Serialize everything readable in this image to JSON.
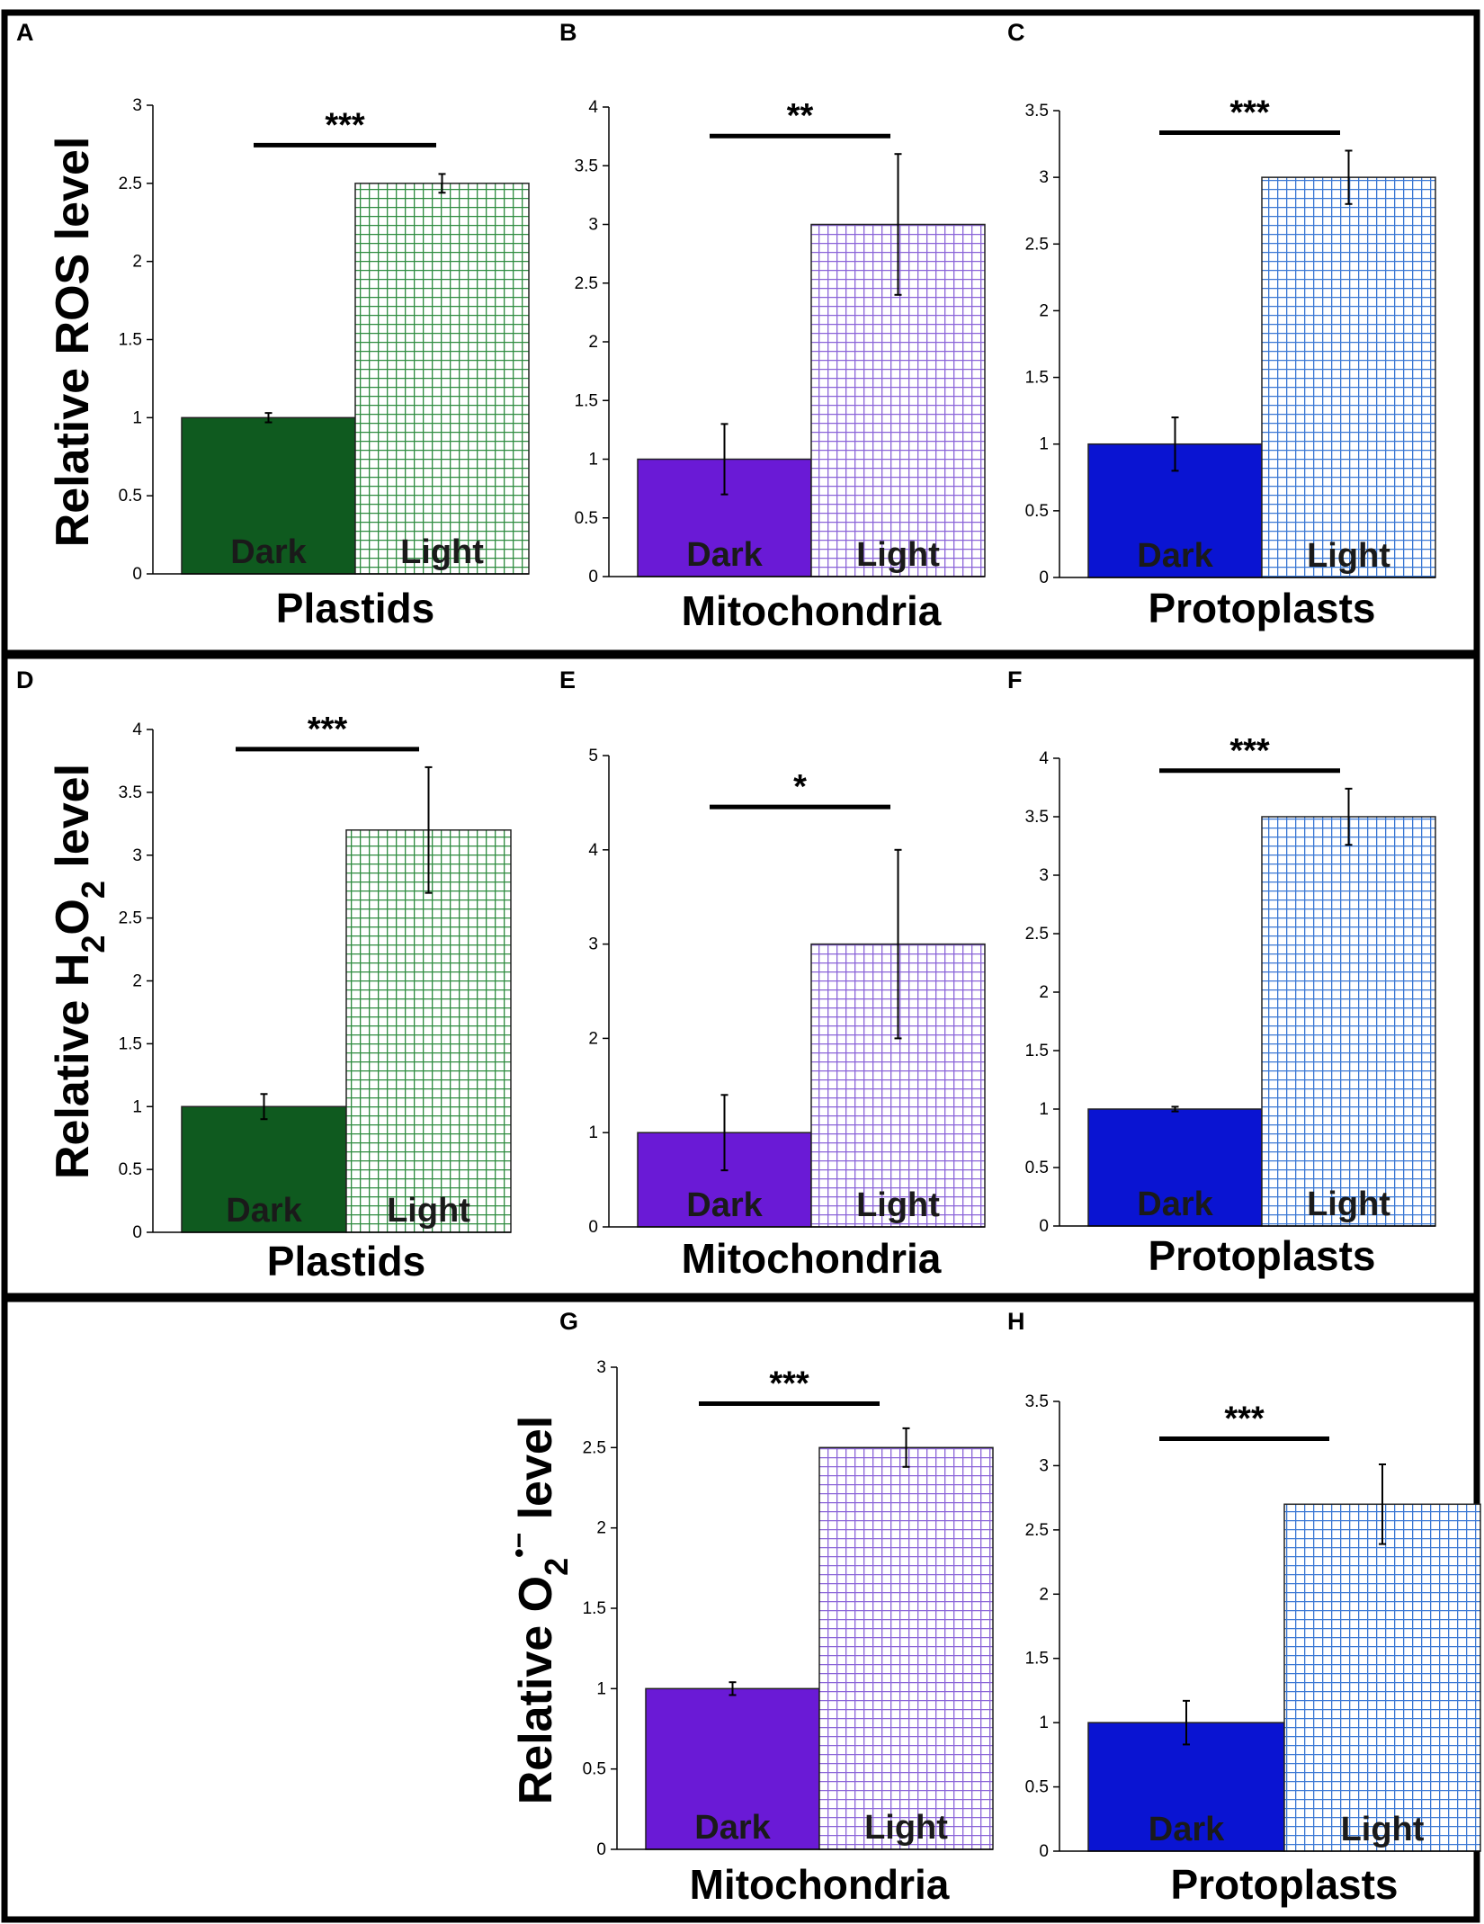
{
  "figure": {
    "row_ylabels": [
      {
        "pre": "Relative ROS level",
        "sub1": "",
        "mid": "",
        "sub2": "",
        "sup": "",
        "post": ""
      },
      {
        "pre": "Relative H",
        "sub1": "2",
        "mid": "O",
        "sub2": "2",
        "sup": "",
        "post": " level"
      },
      {
        "pre": "Relative O",
        "sub1": "2",
        "mid": "",
        "sub2": "",
        "sup": "•−",
        "post": " level"
      }
    ]
  },
  "colors": {
    "plastids_dark": "#0f5a1f",
    "plastids_light_grid": "#2e8b3f",
    "mito_dark": "#6a1ad6",
    "mito_light_grid": "#8a64d8",
    "proto_dark": "#0a14d2",
    "proto_light_grid": "#3b78d4"
  },
  "chart_data": [
    {
      "panel": "A",
      "type": "bar",
      "xlabel": "Plastids",
      "categories": [
        "Dark",
        "Light"
      ],
      "values": [
        1.0,
        2.5
      ],
      "errors": [
        0.03,
        0.06
      ],
      "ylim": [
        0,
        3
      ],
      "yticks": [
        "0",
        "0.5",
        "1",
        "1.5",
        "2",
        "2.5",
        "3"
      ],
      "significance": "***",
      "colors": [
        "plastids_dark",
        "plastids_light_grid"
      ]
    },
    {
      "panel": "B",
      "type": "bar",
      "xlabel": "Mitochondria",
      "categories": [
        "Dark",
        "Light"
      ],
      "values": [
        1.0,
        3.0
      ],
      "errors": [
        0.3,
        0.6
      ],
      "ylim": [
        0,
        4
      ],
      "yticks": [
        "0",
        "0.5",
        "1",
        "1.5",
        "2",
        "2.5",
        "3",
        "3.5",
        "4"
      ],
      "significance": "**",
      "colors": [
        "mito_dark",
        "mito_light_grid"
      ]
    },
    {
      "panel": "C",
      "type": "bar",
      "xlabel": "Protoplasts",
      "categories": [
        "Dark",
        "Light"
      ],
      "values": [
        1.0,
        3.0
      ],
      "errors": [
        0.2,
        0.2
      ],
      "ylim": [
        0,
        3.5
      ],
      "yticks": [
        "0",
        "0.5",
        "1",
        "1.5",
        "2",
        "2.5",
        "3",
        "3.5"
      ],
      "significance": "***",
      "colors": [
        "proto_dark",
        "proto_light_grid"
      ]
    },
    {
      "panel": "D",
      "type": "bar",
      "xlabel": "Plastids",
      "categories": [
        "Dark",
        "Light"
      ],
      "values": [
        1.0,
        3.2
      ],
      "errors": [
        0.1,
        0.5
      ],
      "ylim": [
        0,
        4
      ],
      "yticks": [
        "0",
        "0.5",
        "1",
        "1.5",
        "2",
        "2.5",
        "3",
        "3.5",
        "4"
      ],
      "significance": "***",
      "colors": [
        "plastids_dark",
        "plastids_light_grid"
      ]
    },
    {
      "panel": "E",
      "type": "bar",
      "xlabel": "Mitochondria",
      "categories": [
        "Dark",
        "Light"
      ],
      "values": [
        1.0,
        3.0
      ],
      "errors": [
        0.4,
        1.0
      ],
      "ylim": [
        0,
        5
      ],
      "yticks": [
        "0",
        "1",
        "2",
        "3",
        "4",
        "5"
      ],
      "significance": "*",
      "colors": [
        "mito_dark",
        "mito_light_grid"
      ]
    },
    {
      "panel": "F",
      "type": "bar",
      "xlabel": "Protoplasts",
      "categories": [
        "Dark",
        "Light"
      ],
      "values": [
        1.0,
        3.5
      ],
      "errors": [
        0.02,
        0.24
      ],
      "ylim": [
        0,
        4
      ],
      "yticks": [
        "0",
        "0.5",
        "1",
        "1.5",
        "2",
        "2.5",
        "3",
        "3.5",
        "4"
      ],
      "significance": "***",
      "colors": [
        "proto_dark",
        "proto_light_grid"
      ]
    },
    {
      "panel": "G",
      "type": "bar",
      "xlabel": "Mitochondria",
      "categories": [
        "Dark",
        "Light"
      ],
      "values": [
        1.0,
        2.5
      ],
      "errors": [
        0.04,
        0.12
      ],
      "ylim": [
        0,
        3
      ],
      "yticks": [
        "0",
        "0.5",
        "1",
        "1.5",
        "2",
        "2.5",
        "3"
      ],
      "significance": "***",
      "colors": [
        "mito_dark",
        "mito_light_grid"
      ]
    },
    {
      "panel": "H",
      "type": "bar",
      "xlabel": "Protoplasts",
      "categories": [
        "Dark",
        "Light"
      ],
      "values": [
        1.0,
        2.7
      ],
      "errors": [
        0.17,
        0.31
      ],
      "ylim": [
        0,
        3.5
      ],
      "yticks": [
        "0",
        "0.5",
        "1",
        "1.5",
        "2",
        "2.5",
        "3",
        "3.5"
      ],
      "significance": "***",
      "colors": [
        "proto_dark",
        "proto_light_grid"
      ]
    }
  ]
}
